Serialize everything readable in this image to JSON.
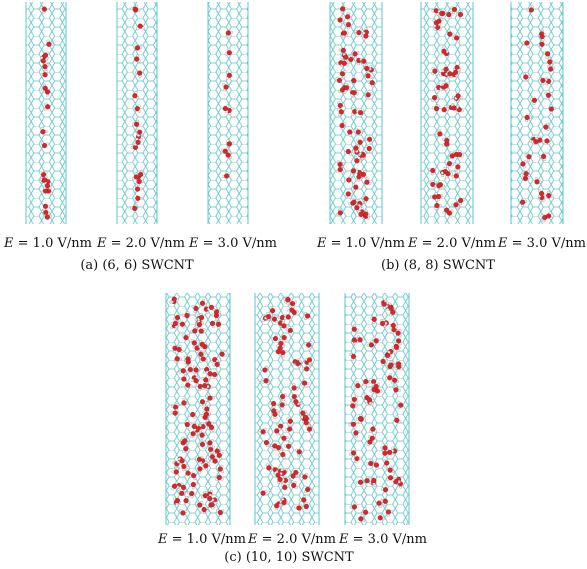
{
  "panels": [
    {
      "caption": "(a) (6, 6) SWCNT",
      "tubes": [
        {
          "label_var": "E",
          "label_val": "= 1.0 V/nm"
        },
        {
          "label_var": "E",
          "label_val": "= 2.0 V/nm"
        },
        {
          "label_var": "E",
          "label_val": "= 3.0 V/nm"
        }
      ]
    },
    {
      "caption": "(b) (8, 8) SWCNT",
      "tubes": [
        {
          "label_var": "E",
          "label_val": "= 1.0 V/nm"
        },
        {
          "label_var": "E",
          "label_val": "= 2.0 V/nm"
        },
        {
          "label_var": "E",
          "label_val": "= 3.0 V/nm"
        }
      ]
    },
    {
      "caption": "(c) (10, 10) SWCNT",
      "tubes": [
        {
          "label_var": "E",
          "label_val": "= 1.0 V/nm"
        },
        {
          "label_var": "E",
          "label_val": "= 2.0 V/nm"
        },
        {
          "label_var": "E",
          "label_val": "= 3.0 V/nm"
        }
      ]
    }
  ],
  "colors": {
    "nanotube": "#5cc4c8",
    "oxygen": "#d8272b",
    "hydrogen": "#f2f2f2",
    "bond": "#c9c9c9"
  }
}
